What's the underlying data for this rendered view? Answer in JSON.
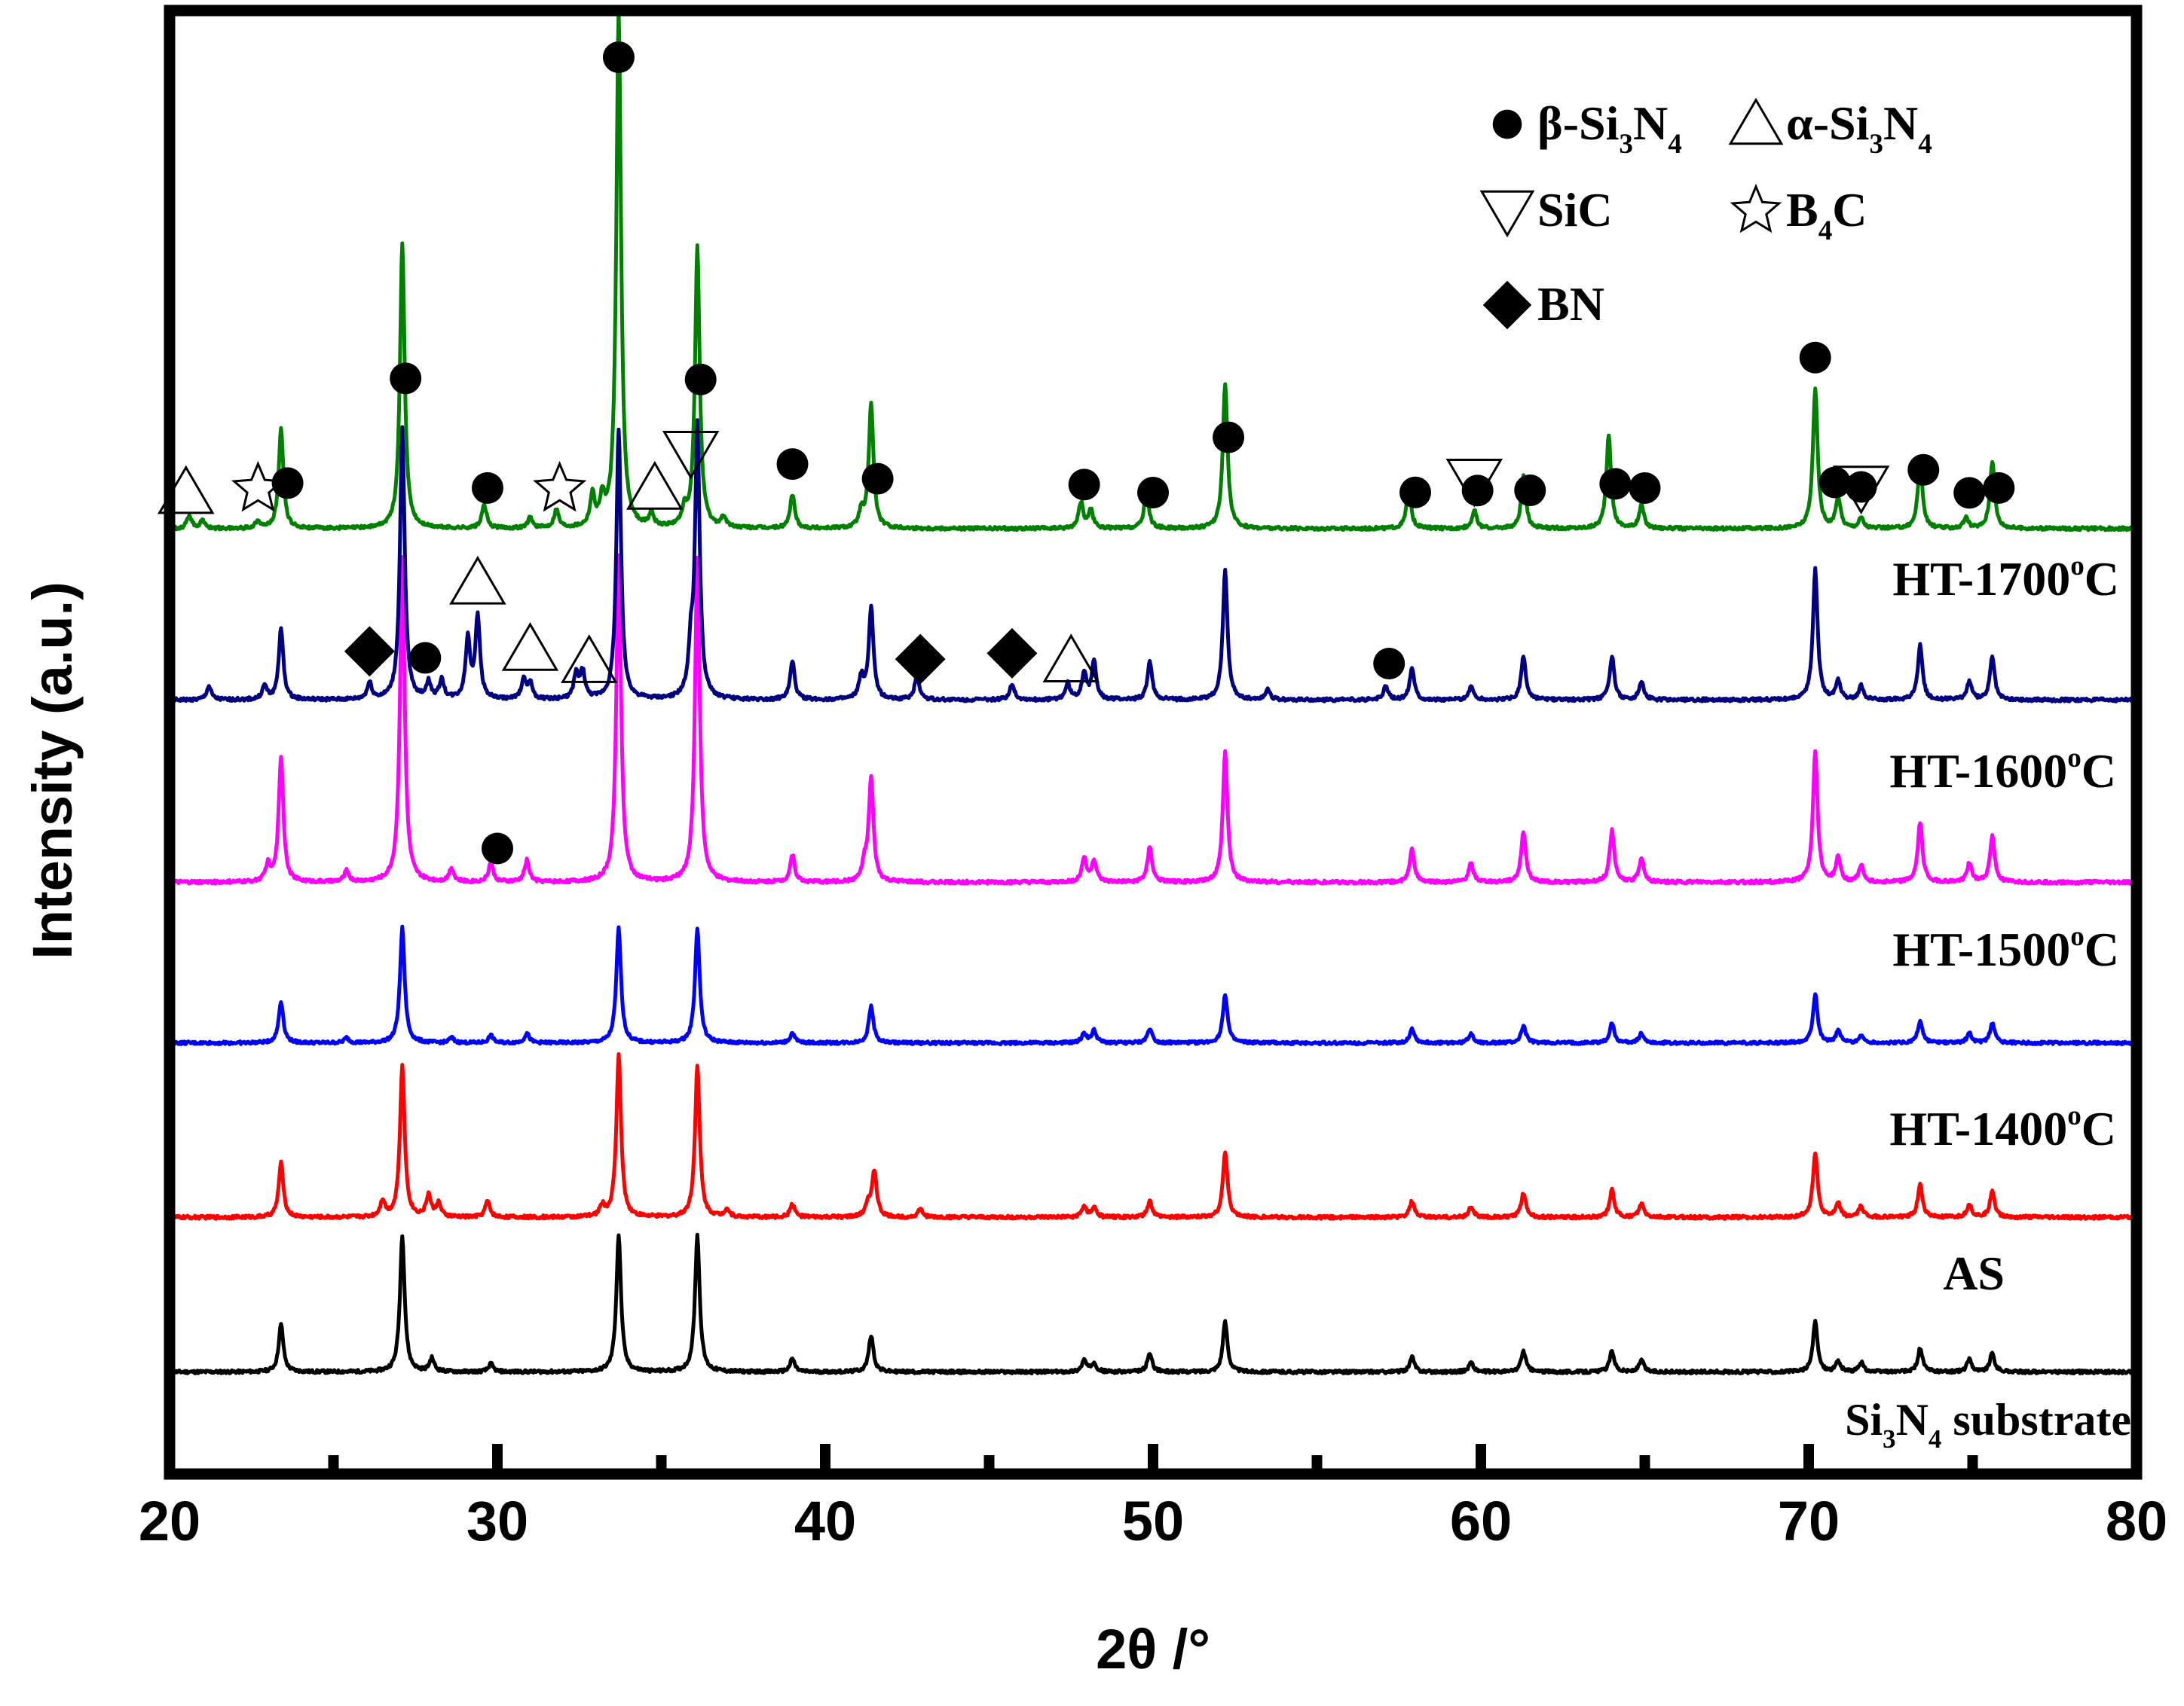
{
  "chart_data": {
    "type": "line",
    "title": "",
    "xlabel": "2θ /°",
    "ylabel": "Intensity (a.u.)",
    "xlim": [
      20,
      80
    ],
    "x_ticks": [
      20,
      30,
      40,
      50,
      60,
      70,
      80
    ],
    "x_tick_labels": [
      "20",
      "30",
      "40",
      "50",
      "60",
      "70",
      "80"
    ],
    "grid": false,
    "legend_position": "top-right",
    "legend": [
      {
        "marker": "filled-circle",
        "label": "β-Si3N4",
        "parts": [
          "β-Si",
          "3",
          "N",
          "4"
        ]
      },
      {
        "marker": "open-triangle-up",
        "label": "α-Si3N4",
        "parts": [
          "α-Si",
          "3",
          "N",
          "4"
        ]
      },
      {
        "marker": "open-triangle-down",
        "label": "SiC",
        "parts": [
          "SiC"
        ]
      },
      {
        "marker": "open-star",
        "label": "B4C",
        "parts": [
          "B",
          "4",
          "C"
        ]
      },
      {
        "marker": "filled-diamond",
        "label": "BN",
        "parts": [
          "BN"
        ]
      }
    ],
    "series": [
      {
        "name": "Si3N4 substrate",
        "label_parts": [
          "Si",
          "3",
          "N",
          "4",
          " substrate"
        ],
        "color": "#000000",
        "baseline": 0.05,
        "peaks": [
          [
            23.4,
            0.9
          ],
          [
            27.1,
            2.6
          ],
          [
            28.0,
            0.25
          ],
          [
            29.8,
            0.15
          ],
          [
            33.7,
            2.6
          ],
          [
            36.1,
            2.6
          ],
          [
            39.0,
            0.25
          ],
          [
            41.4,
            0.7
          ],
          [
            47.9,
            0.22
          ],
          [
            48.2,
            0.18
          ],
          [
            49.9,
            0.35
          ],
          [
            52.2,
            0.95
          ],
          [
            57.9,
            0.28
          ],
          [
            59.7,
            0.18
          ],
          [
            61.3,
            0.4
          ],
          [
            64.0,
            0.4
          ],
          [
            64.9,
            0.22
          ],
          [
            70.2,
            0.95
          ],
          [
            70.9,
            0.2
          ],
          [
            71.6,
            0.18
          ],
          [
            73.4,
            0.45
          ],
          [
            74.9,
            0.25
          ],
          [
            75.6,
            0.35
          ]
        ]
      },
      {
        "name": "AS",
        "label_parts": [
          "AS"
        ],
        "color": "#ff0000",
        "baseline": 0.08,
        "peaks": [
          [
            23.4,
            1.0
          ],
          [
            26.5,
            0.3
          ],
          [
            27.1,
            2.8
          ],
          [
            27.9,
            0.4
          ],
          [
            28.2,
            0.25
          ],
          [
            29.7,
            0.3
          ],
          [
            33.2,
            0.2
          ],
          [
            33.7,
            3.0
          ],
          [
            36.1,
            2.8
          ],
          [
            37.0,
            0.15
          ],
          [
            39.0,
            0.25
          ],
          [
            41.3,
            0.25
          ],
          [
            41.5,
            0.85
          ],
          [
            42.9,
            0.15
          ],
          [
            47.9,
            0.2
          ],
          [
            48.2,
            0.18
          ],
          [
            49.9,
            0.3
          ],
          [
            52.2,
            1.2
          ],
          [
            57.9,
            0.3
          ],
          [
            59.7,
            0.2
          ],
          [
            61.3,
            0.45
          ],
          [
            64.0,
            0.5
          ],
          [
            64.9,
            0.25
          ],
          [
            70.2,
            1.2
          ],
          [
            70.9,
            0.25
          ],
          [
            71.6,
            0.2
          ],
          [
            73.4,
            0.6
          ],
          [
            74.9,
            0.25
          ],
          [
            75.6,
            0.5
          ]
        ]
      },
      {
        "name": "HT-1400°C",
        "label_parts": [
          "HT-1400",
          "o",
          "C"
        ],
        "color": "#0000ff",
        "baseline": 0.05,
        "peaks": [
          [
            23.4,
            0.85
          ],
          [
            25.4,
            0.1
          ],
          [
            27.1,
            2.35
          ],
          [
            28.6,
            0.1
          ],
          [
            29.8,
            0.15
          ],
          [
            30.9,
            0.2
          ],
          [
            33.7,
            2.35
          ],
          [
            36.1,
            2.35
          ],
          [
            39.0,
            0.2
          ],
          [
            41.4,
            0.75
          ],
          [
            47.9,
            0.2
          ],
          [
            48.2,
            0.25
          ],
          [
            49.9,
            0.3
          ],
          [
            52.2,
            1.0
          ],
          [
            57.9,
            0.3
          ],
          [
            59.7,
            0.2
          ],
          [
            61.3,
            0.35
          ],
          [
            64.0,
            0.4
          ],
          [
            64.9,
            0.2
          ],
          [
            70.2,
            1.0
          ],
          [
            70.9,
            0.25
          ],
          [
            71.6,
            0.15
          ],
          [
            73.4,
            0.45
          ],
          [
            74.9,
            0.2
          ],
          [
            75.6,
            0.4
          ]
        ]
      },
      {
        "name": "HT-1500°C",
        "label_parts": [
          "HT-1500",
          "o",
          "C"
        ],
        "color": "#ff00ff",
        "baseline": 0.05,
        "peaks": [
          [
            23.0,
            0.3
          ],
          [
            23.4,
            2.3
          ],
          [
            25.4,
            0.2
          ],
          [
            27.1,
            6.0
          ],
          [
            28.6,
            0.25
          ],
          [
            29.8,
            0.35
          ],
          [
            30.9,
            0.4
          ],
          [
            33.7,
            6.0
          ],
          [
            36.1,
            6.0
          ],
          [
            39.0,
            0.5
          ],
          [
            41.2,
            0.3
          ],
          [
            41.4,
            1.9
          ],
          [
            47.9,
            0.45
          ],
          [
            48.2,
            0.4
          ],
          [
            49.9,
            0.65
          ],
          [
            52.2,
            2.4
          ],
          [
            57.9,
            0.6
          ],
          [
            59.7,
            0.35
          ],
          [
            61.3,
            0.95
          ],
          [
            64.0,
            0.95
          ],
          [
            64.9,
            0.45
          ],
          [
            70.2,
            2.4
          ],
          [
            70.9,
            0.45
          ],
          [
            71.6,
            0.3
          ],
          [
            73.4,
            1.1
          ],
          [
            74.9,
            0.35
          ],
          [
            75.6,
            0.85
          ]
        ]
      },
      {
        "name": "HT-1600°C",
        "label_parts": [
          "HT-1600",
          "o",
          "C"
        ],
        "color": "#000080",
        "baseline": 0.12,
        "peaks": [
          [
            21.2,
            0.25
          ],
          [
            22.9,
            0.25
          ],
          [
            23.4,
            1.3
          ],
          [
            26.1,
            0.3
          ],
          [
            27.1,
            5.0
          ],
          [
            27.9,
            0.3
          ],
          [
            28.3,
            0.35
          ],
          [
            29.1,
            1.1
          ],
          [
            29.4,
            1.5
          ],
          [
            30.8,
            0.35
          ],
          [
            31.0,
            0.3
          ],
          [
            32.4,
            0.45
          ],
          [
            32.6,
            0.5
          ],
          [
            33.7,
            5.0
          ],
          [
            35.9,
            0.8
          ],
          [
            36.1,
            5.0
          ],
          [
            39.0,
            0.7
          ],
          [
            41.1,
            0.4
          ],
          [
            41.4,
            1.7
          ],
          [
            42.8,
            0.45
          ],
          [
            45.7,
            0.3
          ],
          [
            47.4,
            0.3
          ],
          [
            47.9,
            0.5
          ],
          [
            48.2,
            0.7
          ],
          [
            49.9,
            0.7
          ],
          [
            52.2,
            2.4
          ],
          [
            53.5,
            0.2
          ],
          [
            57.1,
            0.25
          ],
          [
            57.9,
            0.6
          ],
          [
            59.7,
            0.25
          ],
          [
            61.3,
            0.8
          ],
          [
            64.0,
            0.8
          ],
          [
            64.9,
            0.35
          ],
          [
            70.2,
            2.4
          ],
          [
            70.9,
            0.35
          ],
          [
            71.6,
            0.25
          ],
          [
            73.4,
            1.0
          ],
          [
            74.9,
            0.35
          ],
          [
            75.6,
            0.8
          ]
        ]
      },
      {
        "name": "HT-1700°C",
        "label_parts": [
          "HT-1700",
          "o",
          "C"
        ],
        "color": "#008000",
        "baseline": 0.06,
        "peaks": [
          [
            20.6,
            0.25
          ],
          [
            21.0,
            0.15
          ],
          [
            22.7,
            0.15
          ],
          [
            23.4,
            1.9
          ],
          [
            27.1,
            5.5
          ],
          [
            29.6,
            0.45
          ],
          [
            31.0,
            0.2
          ],
          [
            31.8,
            0.35
          ],
          [
            32.9,
            0.6
          ],
          [
            33.2,
            0.5
          ],
          [
            33.7,
            10.0
          ],
          [
            34.7,
            0.25
          ],
          [
            35.7,
            0.3
          ],
          [
            36.1,
            5.4
          ],
          [
            36.9,
            0.2
          ],
          [
            39.0,
            0.65
          ],
          [
            41.1,
            0.3
          ],
          [
            41.4,
            2.4
          ],
          [
            47.8,
            0.5
          ],
          [
            48.1,
            0.35
          ],
          [
            49.8,
            0.7
          ],
          [
            52.2,
            2.8
          ],
          [
            57.8,
            0.75
          ],
          [
            59.8,
            0.35
          ],
          [
            61.3,
            1.0
          ],
          [
            63.9,
            1.8
          ],
          [
            64.9,
            0.45
          ],
          [
            70.2,
            2.7
          ],
          [
            70.9,
            0.6
          ],
          [
            71.6,
            0.2
          ],
          [
            73.4,
            1.3
          ],
          [
            74.8,
            0.2
          ],
          [
            75.6,
            1.3
          ]
        ]
      }
    ],
    "annotations": [
      {
        "series": "HT-1700°C",
        "marker": "filled-circle",
        "x": [
          23.6,
          27.2,
          29.7,
          33.7,
          36.2,
          39.0,
          41.6,
          47.9,
          50.0,
          52.3,
          58.0,
          59.9,
          61.5,
          64.1,
          65.0,
          70.2,
          70.8,
          71.6,
          73.5,
          74.9,
          75.8
        ]
      },
      {
        "series": "HT-1700°C",
        "marker": "open-triangle-up",
        "x": [
          20.5,
          34.8
        ]
      },
      {
        "series": "HT-1700°C",
        "marker": "open-star",
        "x": [
          22.7,
          31.9
        ]
      },
      {
        "series": "HT-1700°C",
        "marker": "open-triangle-down",
        "x": [
          35.9,
          59.8,
          71.6
        ]
      },
      {
        "series": "HT-1600°C",
        "marker": "filled-diamond",
        "x": [
          26.1,
          42.9,
          45.7
        ]
      },
      {
        "series": "HT-1600°C",
        "marker": "filled-circle",
        "x": [
          27.8,
          57.2
        ]
      },
      {
        "series": "HT-1600°C",
        "marker": "open-triangle-up",
        "x": [
          29.4,
          31.0,
          32.8,
          47.5
        ]
      },
      {
        "series": "HT-1500°C",
        "marker": "filled-circle",
        "x": [
          30.0
        ]
      }
    ],
    "bottom_ticks_major": [
      30,
      40,
      50,
      60,
      70
    ],
    "bottom_ticks_minor": [
      25,
      35,
      45,
      55,
      65,
      75
    ]
  }
}
